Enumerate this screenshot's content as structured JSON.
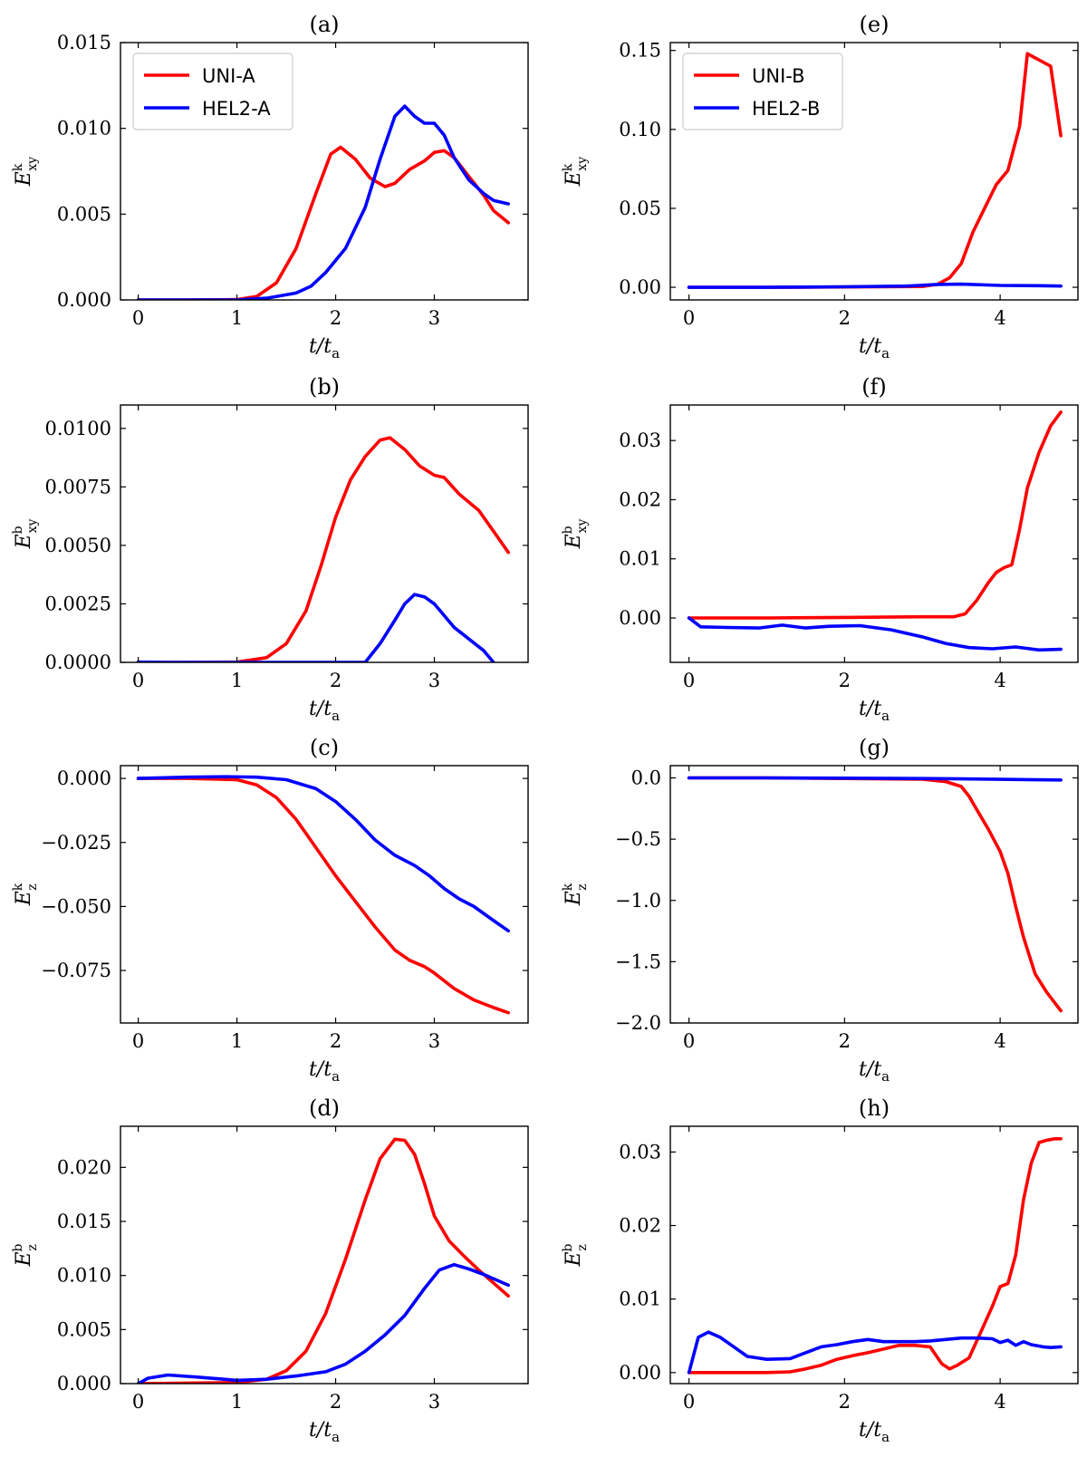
{
  "colors": {
    "uni": "#ff0000",
    "hel": "#0000ff",
    "axis": "#000000",
    "legend_border": "#cccccc"
  },
  "chart_data": [
    {
      "panel": "(a)",
      "type": "line",
      "title": "(a)",
      "xlabel": "t/t_a",
      "ylabel": "E_xy^k",
      "ylabel_main": "E",
      "ylabel_sup": "k",
      "ylabel_sub": "xy",
      "xlabel_main": "t/t",
      "xlabel_sub": "a",
      "xlim": [
        -0.18,
        3.95
      ],
      "ylim": [
        0,
        0.015
      ],
      "xticks": [
        0,
        1,
        2,
        3
      ],
      "xtick_labels": [
        "0",
        "1",
        "2",
        "3"
      ],
      "yticks": [
        0,
        0.005,
        0.01,
        0.015
      ],
      "ytick_labels": [
        "0.000",
        "0.005",
        "0.010",
        "0.015"
      ],
      "legend": {
        "placement": "top-left",
        "entries": [
          "UNI-A",
          "HEL2-A"
        ]
      },
      "series": [
        {
          "name": "UNI-A",
          "color_key": "uni",
          "x": [
            0,
            0.5,
            1.0,
            1.2,
            1.4,
            1.6,
            1.8,
            1.95,
            2.05,
            2.2,
            2.35,
            2.5,
            2.6,
            2.75,
            2.9,
            3.0,
            3.1,
            3.2,
            3.35,
            3.5,
            3.6,
            3.75
          ],
          "y": [
            0,
            0,
            2e-05,
            0.0002,
            0.001,
            0.003,
            0.0062,
            0.0085,
            0.0089,
            0.0082,
            0.0071,
            0.0066,
            0.0068,
            0.0076,
            0.0081,
            0.0086,
            0.0087,
            0.0083,
            0.0072,
            0.0061,
            0.0052,
            0.0045
          ]
        },
        {
          "name": "HEL2-A",
          "color_key": "hel",
          "x": [
            0,
            0.5,
            1.0,
            1.3,
            1.6,
            1.75,
            1.9,
            2.1,
            2.3,
            2.45,
            2.6,
            2.7,
            2.8,
            2.9,
            3.0,
            3.1,
            3.2,
            3.35,
            3.5,
            3.6,
            3.75
          ],
          "y": [
            0,
            0,
            0,
            0.0001,
            0.0004,
            0.0008,
            0.0016,
            0.003,
            0.0054,
            0.0082,
            0.0107,
            0.0113,
            0.0107,
            0.0103,
            0.0103,
            0.0096,
            0.0083,
            0.007,
            0.0062,
            0.0058,
            0.0056
          ]
        }
      ]
    },
    {
      "panel": "(b)",
      "type": "line",
      "title": "(b)",
      "xlabel": "t/t_a",
      "ylabel": "E_xy^b",
      "ylabel_main": "E",
      "ylabel_sup": "b",
      "ylabel_sub": "xy",
      "xlabel_main": "t/t",
      "xlabel_sub": "a",
      "xlim": [
        -0.18,
        3.95
      ],
      "ylim": [
        0,
        0.011
      ],
      "xticks": [
        0,
        1,
        2,
        3
      ],
      "xtick_labels": [
        "0",
        "1",
        "2",
        "3"
      ],
      "yticks": [
        0,
        0.0025,
        0.005,
        0.0075,
        0.01
      ],
      "ytick_labels": [
        "0.0000",
        "0.0025",
        "0.0050",
        "0.0075",
        "0.0100"
      ],
      "series": [
        {
          "name": "UNI-A",
          "color_key": "uni",
          "x": [
            0,
            0.5,
            1.0,
            1.3,
            1.5,
            1.7,
            1.85,
            2.0,
            2.15,
            2.3,
            2.45,
            2.55,
            2.7,
            2.85,
            3.0,
            3.1,
            3.25,
            3.45,
            3.6,
            3.75
          ],
          "y": [
            0,
            0,
            1e-05,
            0.0002,
            0.0008,
            0.0022,
            0.0041,
            0.0062,
            0.0078,
            0.0088,
            0.0095,
            0.0096,
            0.0091,
            0.0084,
            0.008,
            0.0079,
            0.0072,
            0.0065,
            0.0056,
            0.0047
          ]
        },
        {
          "name": "HEL2-A",
          "color_key": "hel",
          "x": [
            0,
            0.3,
            2.3,
            2.45,
            2.6,
            2.7,
            2.8,
            2.9,
            3.0,
            3.1,
            3.2,
            3.35,
            3.5,
            3.6
          ],
          "y": [
            1e-05,
            0,
            0,
            0.0008,
            0.0018,
            0.0025,
            0.0029,
            0.0028,
            0.0025,
            0.002,
            0.0015,
            0.001,
            0.0005,
            0
          ]
        }
      ]
    },
    {
      "panel": "(c)",
      "type": "line",
      "title": "(c)",
      "xlabel": "t/t_a",
      "ylabel": "E_z^k",
      "ylabel_main": "E",
      "ylabel_sup": "k",
      "ylabel_sub": "z",
      "xlabel_main": "t/t",
      "xlabel_sub": "a",
      "xlim": [
        -0.18,
        3.95
      ],
      "ylim": [
        -0.0955,
        0.005
      ],
      "xticks": [
        0,
        1,
        2,
        3
      ],
      "xtick_labels": [
        "0",
        "1",
        "2",
        "3"
      ],
      "yticks": [
        0,
        -0.025,
        -0.05,
        -0.075
      ],
      "ytick_labels": [
        "0.000",
        "−0.025",
        "−0.050",
        "−0.075"
      ],
      "series": [
        {
          "name": "UNI-A",
          "color_key": "uni",
          "x": [
            0,
            0.5,
            1.0,
            1.2,
            1.4,
            1.6,
            1.8,
            2.0,
            2.2,
            2.4,
            2.6,
            2.75,
            2.9,
            3.0,
            3.2,
            3.4,
            3.6,
            3.75
          ],
          "y": [
            0,
            0,
            -0.0005,
            -0.0025,
            -0.0075,
            -0.016,
            -0.027,
            -0.038,
            -0.048,
            -0.058,
            -0.067,
            -0.071,
            -0.0735,
            -0.076,
            -0.082,
            -0.0865,
            -0.0895,
            -0.0915
          ]
        },
        {
          "name": "HEL2-A",
          "color_key": "hel",
          "x": [
            0,
            0.5,
            0.9,
            1.2,
            1.5,
            1.8,
            2.0,
            2.2,
            2.4,
            2.6,
            2.8,
            2.95,
            3.1,
            3.25,
            3.4,
            3.6,
            3.75
          ],
          "y": [
            0,
            0.0005,
            0.0007,
            0.0005,
            -0.0005,
            -0.004,
            -0.009,
            -0.016,
            -0.024,
            -0.03,
            -0.034,
            -0.038,
            -0.043,
            -0.047,
            -0.05,
            -0.0555,
            -0.0595
          ]
        }
      ]
    },
    {
      "panel": "(d)",
      "type": "line",
      "title": "(d)",
      "xlabel": "t/t_a",
      "ylabel": "E_z^b",
      "ylabel_main": "E",
      "ylabel_sup": "b",
      "ylabel_sub": "z",
      "xlabel_main": "t/t",
      "xlabel_sub": "a",
      "xlim": [
        -0.18,
        3.95
      ],
      "ylim": [
        0,
        0.0238
      ],
      "xticks": [
        0,
        1,
        2,
        3
      ],
      "xtick_labels": [
        "0",
        "1",
        "2",
        "3"
      ],
      "yticks": [
        0,
        0.005,
        0.01,
        0.015,
        0.02
      ],
      "ytick_labels": [
        "0.000",
        "0.005",
        "0.010",
        "0.015",
        "0.020"
      ],
      "series": [
        {
          "name": "UNI-A",
          "color_key": "uni",
          "x": [
            0,
            0.5,
            1.0,
            1.3,
            1.5,
            1.7,
            1.9,
            2.1,
            2.3,
            2.45,
            2.6,
            2.7,
            2.8,
            2.9,
            3.0,
            3.15,
            3.3,
            3.45,
            3.6,
            3.75
          ],
          "y": [
            0,
            5e-05,
            0.0001,
            0.0004,
            0.0012,
            0.003,
            0.0065,
            0.0115,
            0.017,
            0.0208,
            0.0226,
            0.0225,
            0.0212,
            0.0185,
            0.0155,
            0.0132,
            0.0118,
            0.0105,
            0.0093,
            0.0081
          ]
        },
        {
          "name": "HEL2-A",
          "color_key": "hel",
          "x": [
            0,
            0.1,
            0.3,
            0.6,
            1.0,
            1.3,
            1.6,
            1.9,
            2.1,
            2.3,
            2.5,
            2.7,
            2.9,
            3.05,
            3.2,
            3.35,
            3.5,
            3.65,
            3.75
          ],
          "y": [
            0,
            0.0005,
            0.0008,
            0.0006,
            0.0003,
            0.0004,
            0.0007,
            0.0011,
            0.0018,
            0.003,
            0.0045,
            0.0063,
            0.0088,
            0.0105,
            0.011,
            0.0106,
            0.0101,
            0.0095,
            0.0091
          ]
        }
      ]
    },
    {
      "panel": "(e)",
      "type": "line",
      "title": "(e)",
      "xlabel": "t/t_a",
      "ylabel": "E_xy^k",
      "ylabel_main": "E",
      "ylabel_sup": "k",
      "ylabel_sub": "xy",
      "xlabel_main": "t/t",
      "xlabel_sub": "a",
      "xlim": [
        -0.24,
        5.0
      ],
      "ylim": [
        -0.008,
        0.155
      ],
      "xticks": [
        0,
        2,
        4
      ],
      "xtick_labels": [
        "0",
        "2",
        "4"
      ],
      "yticks": [
        0,
        0.05,
        0.1,
        0.15
      ],
      "ytick_labels": [
        "0.00",
        "0.05",
        "0.10",
        "0.15"
      ],
      "legend": {
        "placement": "top-left",
        "entries": [
          "UNI-B",
          "HEL2-B"
        ]
      },
      "series": [
        {
          "name": "UNI-B",
          "color_key": "uni",
          "x": [
            0,
            1,
            2,
            3,
            3.2,
            3.35,
            3.5,
            3.65,
            3.8,
            3.95,
            4.1,
            4.25,
            4.35,
            4.5,
            4.65,
            4.78
          ],
          "y": [
            0,
            0,
            0.0002,
            0.0005,
            0.002,
            0.006,
            0.015,
            0.035,
            0.05,
            0.065,
            0.074,
            0.102,
            0.148,
            0.144,
            0.14,
            0.096
          ]
        },
        {
          "name": "HEL2-B",
          "color_key": "hel",
          "x": [
            0,
            1,
            2,
            2.8,
            3.2,
            3.5,
            4.0,
            4.5,
            4.78
          ],
          "y": [
            0,
            0,
            0.0003,
            0.0008,
            0.0018,
            0.002,
            0.0012,
            0.001,
            0.0008
          ]
        }
      ]
    },
    {
      "panel": "(f)",
      "type": "line",
      "title": "(f)",
      "xlabel": "t/t_a",
      "ylabel": "E_xy^b",
      "ylabel_main": "E",
      "ylabel_sup": "b",
      "ylabel_sub": "xy",
      "xlabel_main": "t/t",
      "xlabel_sub": "a",
      "xlim": [
        -0.24,
        5.0
      ],
      "ylim": [
        -0.0075,
        0.036
      ],
      "xticks": [
        0,
        2,
        4
      ],
      "xtick_labels": [
        "0",
        "2",
        "4"
      ],
      "yticks": [
        0,
        0.01,
        0.02,
        0.03
      ],
      "ytick_labels": [
        "0.00",
        "0.01",
        "0.02",
        "0.03"
      ],
      "series": [
        {
          "name": "UNI-B",
          "color_key": "uni",
          "x": [
            0,
            1,
            2,
            3,
            3.4,
            3.55,
            3.7,
            3.85,
            3.95,
            4.05,
            4.15,
            4.25,
            4.35,
            4.5,
            4.65,
            4.78
          ],
          "y": [
            0,
            0,
            0.0001,
            0.0002,
            0.0002,
            0.0007,
            0.003,
            0.006,
            0.0077,
            0.0085,
            0.009,
            0.015,
            0.022,
            0.028,
            0.0325,
            0.0348
          ]
        },
        {
          "name": "HEL2-B",
          "color_key": "hel",
          "x": [
            0,
            0.15,
            0.5,
            0.9,
            1.2,
            1.5,
            1.8,
            2.2,
            2.6,
            3.0,
            3.3,
            3.6,
            3.9,
            4.2,
            4.5,
            4.78
          ],
          "y": [
            0,
            -0.0015,
            -0.0016,
            -0.0017,
            -0.0012,
            -0.0017,
            -0.0014,
            -0.0013,
            -0.002,
            -0.0032,
            -0.0043,
            -0.005,
            -0.0052,
            -0.0049,
            -0.0054,
            -0.0053
          ]
        }
      ]
    },
    {
      "panel": "(g)",
      "type": "line",
      "title": "(g)",
      "xlabel": "t/t_a",
      "ylabel": "E_z^k",
      "ylabel_main": "E",
      "ylabel_sup": "k",
      "ylabel_sub": "z",
      "xlabel_main": "t/t",
      "xlabel_sub": "a",
      "xlim": [
        -0.24,
        5.0
      ],
      "ylim": [
        -2.0,
        0.1
      ],
      "xticks": [
        0,
        2,
        4
      ],
      "xtick_labels": [
        "0",
        "2",
        "4"
      ],
      "yticks": [
        0,
        -0.5,
        -1.0,
        -1.5,
        -2.0
      ],
      "ytick_labels": [
        "0.0",
        "−0.5",
        "−1.0",
        "−1.5",
        "−2.0"
      ],
      "series": [
        {
          "name": "UNI-B",
          "color_key": "uni",
          "x": [
            0,
            1,
            2,
            3,
            3.3,
            3.5,
            3.6,
            3.7,
            3.85,
            4.0,
            4.1,
            4.2,
            4.3,
            4.45,
            4.6,
            4.78
          ],
          "y": [
            0,
            0,
            -0.005,
            -0.01,
            -0.03,
            -0.07,
            -0.15,
            -0.26,
            -0.42,
            -0.6,
            -0.78,
            -1.05,
            -1.3,
            -1.6,
            -1.75,
            -1.9
          ]
        },
        {
          "name": "HEL2-B",
          "color_key": "hel",
          "x": [
            0,
            1,
            2,
            3,
            3.5,
            4.0,
            4.5,
            4.78
          ],
          "y": [
            0,
            0,
            -0.002,
            -0.005,
            -0.008,
            -0.012,
            -0.015,
            -0.017
          ]
        }
      ]
    },
    {
      "panel": "(h)",
      "type": "line",
      "title": "(h)",
      "xlabel": "t/t_a",
      "ylabel": "E_z^b",
      "ylabel_main": "E",
      "ylabel_sup": "b",
      "ylabel_sub": "z",
      "xlabel_main": "t/t",
      "xlabel_sub": "a",
      "xlim": [
        -0.24,
        5.0
      ],
      "ylim": [
        -0.0015,
        0.0335
      ],
      "xticks": [
        0,
        2,
        4
      ],
      "xtick_labels": [
        "0",
        "2",
        "4"
      ],
      "yticks": [
        0,
        0.01,
        0.02,
        0.03
      ],
      "ytick_labels": [
        "0.00",
        "0.01",
        "0.02",
        "0.03"
      ],
      "series": [
        {
          "name": "UNI-B",
          "color_key": "uni",
          "x": [
            0,
            0.6,
            1.0,
            1.3,
            1.5,
            1.7,
            1.9,
            2.1,
            2.3,
            2.5,
            2.7,
            2.9,
            3.1,
            3.25,
            3.35,
            3.45,
            3.6,
            3.75,
            3.9,
            4.0,
            4.1,
            4.2,
            4.3,
            4.4,
            4.5,
            4.6,
            4.7,
            4.78
          ],
          "y": [
            0,
            0,
            0,
            0.0001,
            0.0005,
            0.001,
            0.0018,
            0.0023,
            0.0027,
            0.0032,
            0.0037,
            0.0037,
            0.0035,
            0.0012,
            0.0005,
            0.001,
            0.002,
            0.0055,
            0.009,
            0.0117,
            0.0121,
            0.016,
            0.0235,
            0.0285,
            0.0313,
            0.0316,
            0.0318,
            0.0318
          ]
        },
        {
          "name": "HEL2-B",
          "color_key": "hel",
          "x": [
            0,
            0.12,
            0.25,
            0.4,
            0.55,
            0.75,
            1.0,
            1.3,
            1.5,
            1.7,
            1.9,
            2.1,
            2.3,
            2.5,
            2.7,
            2.9,
            3.1,
            3.3,
            3.5,
            3.7,
            3.9,
            4.0,
            4.1,
            4.2,
            4.3,
            4.4,
            4.55,
            4.65,
            4.78
          ],
          "y": [
            0,
            0.0048,
            0.0055,
            0.0048,
            0.0037,
            0.0022,
            0.0018,
            0.0019,
            0.0027,
            0.0035,
            0.0038,
            0.0042,
            0.0045,
            0.0042,
            0.0042,
            0.0042,
            0.0043,
            0.0045,
            0.0047,
            0.0047,
            0.0046,
            0.0041,
            0.0044,
            0.0037,
            0.0042,
            0.0038,
            0.0035,
            0.0034,
            0.0035
          ]
        }
      ]
    }
  ]
}
